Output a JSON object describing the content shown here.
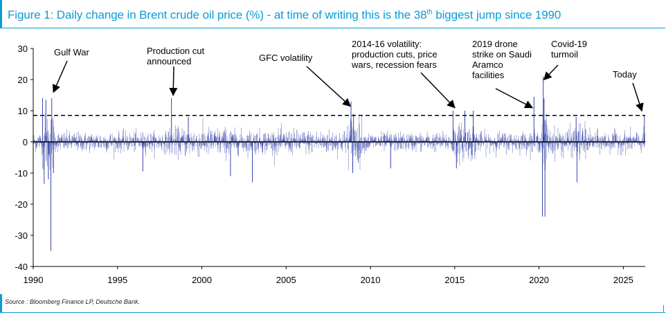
{
  "header": {
    "title_pre": "Figure 1: Daily change in Brent crude oil price (%) - at time of writing this is the 38",
    "title_sup": "th",
    "title_post": " biggest jump since 1990"
  },
  "footer": {
    "source": "Source : Bloomberg Finance LP, Deutsche Bank."
  },
  "chart_data": {
    "type": "bar",
    "title": "",
    "xlabel": "",
    "ylabel": "",
    "xlim": [
      1990,
      2026.3
    ],
    "ylim": [
      -40,
      30
    ],
    "x_ticks": [
      1990,
      1995,
      2000,
      2005,
      2010,
      2015,
      2020,
      2025
    ],
    "y_ticks": [
      30,
      20,
      10,
      0,
      -10,
      -20,
      -30,
      -40
    ],
    "grid": false,
    "series_color": "#1f2f9f",
    "reference_line": {
      "y": 8.5,
      "style": "dashed"
    },
    "regimes": [
      {
        "start": 1990.0,
        "end": 1990.55,
        "vol": 1.6
      },
      {
        "start": 1990.55,
        "end": 1991.25,
        "vol": 4.8
      },
      {
        "start": 1991.25,
        "end": 1998.0,
        "vol": 1.6
      },
      {
        "start": 1998.0,
        "end": 2001.8,
        "vol": 2.3
      },
      {
        "start": 2001.8,
        "end": 2008.6,
        "vol": 1.9
      },
      {
        "start": 2008.6,
        "end": 2009.5,
        "vol": 4.0
      },
      {
        "start": 2009.5,
        "end": 2014.8,
        "vol": 1.5
      },
      {
        "start": 2014.8,
        "end": 2016.3,
        "vol": 2.9
      },
      {
        "start": 2016.3,
        "end": 2020.15,
        "vol": 1.6
      },
      {
        "start": 2020.15,
        "end": 2020.5,
        "vol": 6.0
      },
      {
        "start": 2020.5,
        "end": 2022.1,
        "vol": 2.2
      },
      {
        "start": 2022.1,
        "end": 2022.8,
        "vol": 3.0
      },
      {
        "start": 2022.8,
        "end": 2026.3,
        "vol": 1.7
      }
    ],
    "spikes": [
      [
        1990.55,
        14.0
      ],
      [
        1990.65,
        -13.5
      ],
      [
        1990.75,
        13.5
      ],
      [
        1990.9,
        -12.0
      ],
      [
        1991.05,
        -35.0
      ],
      [
        1991.1,
        14.0
      ],
      [
        1991.2,
        -10.0
      ],
      [
        1996.5,
        -9.5
      ],
      [
        1998.2,
        14.0
      ],
      [
        1999.2,
        8.0
      ],
      [
        2001.7,
        -11.0
      ],
      [
        2003.0,
        -13.0
      ],
      [
        2008.85,
        13.0
      ],
      [
        2008.95,
        -10.0
      ],
      [
        2009.0,
        9.0
      ],
      [
        2011.2,
        -8.5
      ],
      [
        2014.9,
        10.0
      ],
      [
        2015.1,
        -8.5
      ],
      [
        2015.6,
        10.0
      ],
      [
        2016.1,
        10.0
      ],
      [
        2019.7,
        14.5
      ],
      [
        2020.2,
        -24.0
      ],
      [
        2020.25,
        21.0
      ],
      [
        2020.3,
        14.0
      ],
      [
        2020.35,
        -24.0
      ],
      [
        2022.2,
        8.0
      ],
      [
        2022.25,
        -13.0
      ],
      [
        2026.25,
        8.5
      ]
    ],
    "annotations": [
      {
        "lines": [
          "Gulf War"
        ],
        "target": [
          1991.2,
          16
        ]
      },
      {
        "lines": [
          "Production cut",
          "announced"
        ],
        "target": [
          1998.3,
          15
        ]
      },
      {
        "lines": [
          "GFC volatility"
        ],
        "target": [
          2008.8,
          11.5
        ]
      },
      {
        "lines": [
          "2014-16 volatility:",
          "production cuts, price",
          "wars, recession fears"
        ],
        "target": [
          2015.0,
          11
        ]
      },
      {
        "lines": [
          "2019 drone",
          "strike on Saudi",
          "Aramco",
          "facilities"
        ],
        "target": [
          2019.6,
          11
        ]
      },
      {
        "lines": [
          "Covid-19",
          "turmoil"
        ],
        "target": [
          2020.3,
          20
        ]
      },
      {
        "lines": [
          "Today"
        ],
        "target": [
          2026.1,
          10
        ]
      }
    ]
  }
}
